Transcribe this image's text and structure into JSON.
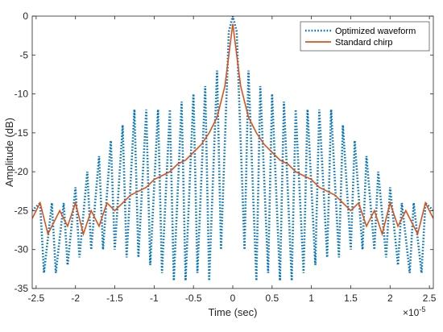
{
  "chart_data": {
    "type": "line",
    "title": "",
    "xlabel": "Time (sec)",
    "ylabel": "Amplitude (dB)",
    "x_exponent_label": "×10",
    "x_exponent_value": "-5",
    "xlim": [
      -2.55,
      2.55
    ],
    "ylim": [
      -35,
      0
    ],
    "x_ticks": [
      -2.5,
      -2,
      -1.5,
      -1,
      -0.5,
      0,
      0.5,
      1,
      1.5,
      2,
      2.5
    ],
    "x_tick_labels": [
      "-2.5",
      "-2",
      "-1.5",
      "-1",
      "-0.5",
      "0",
      "0.5",
      "1",
      "1.5",
      "2",
      "2.5"
    ],
    "y_ticks": [
      0,
      -5,
      -10,
      -15,
      -20,
      -25,
      -30,
      -35
    ],
    "y_tick_labels": [
      "0",
      "-5",
      "-10",
      "-15",
      "-20",
      "-25",
      "-30",
      "-35"
    ],
    "grid": false,
    "legend_position": "top-right",
    "series": [
      {
        "name": "Optimized waveform",
        "color": "#0072BD",
        "style": "dotted",
        "x": [
          -2.55,
          -2.45,
          -2.4,
          -2.3,
          -2.25,
          -2.15,
          -2.1,
          -2.0,
          -1.95,
          -1.85,
          -1.8,
          -1.7,
          -1.65,
          -1.55,
          -1.5,
          -1.4,
          -1.35,
          -1.25,
          -1.2,
          -1.1,
          -1.05,
          -0.95,
          -0.9,
          -0.8,
          -0.75,
          -0.65,
          -0.6,
          -0.5,
          -0.45,
          -0.35,
          -0.3,
          -0.2,
          -0.15,
          -0.05,
          0.0,
          0.05,
          0.15,
          0.2,
          0.3,
          0.35,
          0.45,
          0.5,
          0.6,
          0.65,
          0.75,
          0.8,
          0.9,
          0.95,
          1.05,
          1.1,
          1.2,
          1.25,
          1.35,
          1.4,
          1.5,
          1.55,
          1.65,
          1.7,
          1.8,
          1.85,
          1.95,
          2.0,
          2.1,
          2.15,
          2.25,
          2.3,
          2.4,
          2.45,
          2.55
        ],
        "y": [
          -25,
          -24,
          -33,
          -24,
          -33,
          -24,
          -32,
          -22,
          -31,
          -20,
          -30,
          -18,
          -30,
          -16,
          -30,
          -14,
          -31,
          -12,
          -31,
          -12,
          -32,
          -12,
          -33,
          -12,
          -34,
          -11,
          -34,
          -10,
          -33,
          -9,
          -34,
          -7,
          -30,
          -2,
          0,
          -2,
          -30,
          -7,
          -34,
          -9,
          -33,
          -10,
          -34,
          -11,
          -34,
          -12,
          -33,
          -12,
          -32,
          -12,
          -31,
          -12,
          -31,
          -14,
          -30,
          -16,
          -30,
          -18,
          -30,
          -20,
          -31,
          -22,
          -32,
          -24,
          -33,
          -24,
          -33,
          -24,
          -25
        ]
      },
      {
        "name": "Standard chirp",
        "color": "#D95319",
        "style": "solid",
        "x": [
          -2.55,
          -2.45,
          -2.35,
          -2.2,
          -2.1,
          -2.0,
          -1.9,
          -1.8,
          -1.7,
          -1.6,
          -1.5,
          -1.4,
          -1.3,
          -1.2,
          -1.1,
          -1.0,
          -0.9,
          -0.8,
          -0.7,
          -0.6,
          -0.5,
          -0.4,
          -0.3,
          -0.2,
          -0.1,
          -0.05,
          0.0,
          0.05,
          0.1,
          0.2,
          0.3,
          0.4,
          0.5,
          0.6,
          0.7,
          0.8,
          0.9,
          1.0,
          1.1,
          1.2,
          1.3,
          1.4,
          1.5,
          1.6,
          1.7,
          1.8,
          1.9,
          2.0,
          2.1,
          2.2,
          2.35,
          2.45,
          2.55
        ],
        "y": [
          -26,
          -24,
          -28,
          -25,
          -27,
          -24,
          -28,
          -25,
          -27,
          -24,
          -25,
          -24,
          -23,
          -22.5,
          -22,
          -21,
          -20.5,
          -20,
          -19,
          -18.5,
          -17.5,
          -16.5,
          -15,
          -13,
          -9,
          -5,
          -1,
          -5,
          -9,
          -13,
          -15,
          -16.5,
          -17.5,
          -18.5,
          -19,
          -20,
          -20.5,
          -21,
          -22,
          -22.5,
          -23,
          -24,
          -25,
          -24,
          -27,
          -25,
          -28,
          -24,
          -27,
          -25,
          -28,
          -24,
          -26
        ]
      }
    ]
  }
}
